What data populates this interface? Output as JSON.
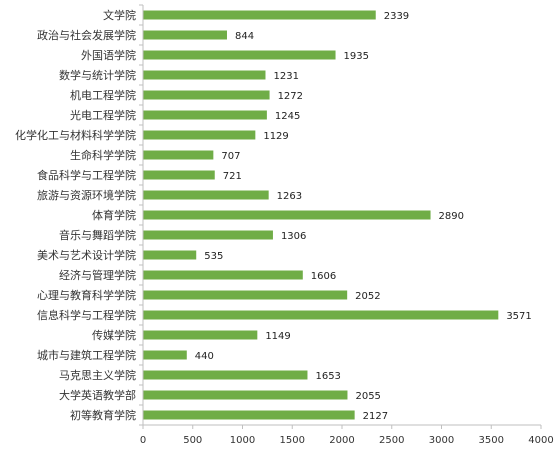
{
  "chart_data": {
    "type": "bar",
    "orientation": "horizontal",
    "categories": [
      "文学院",
      "政治与社会发展学院",
      "外国语学院",
      "数学与统计学院",
      "机电工程学院",
      "光电工程学院",
      "化学化工与材料科学学院",
      "生命科学学院",
      "食品科学与工程学院",
      "旅游与资源环境学院",
      "体育学院",
      "音乐与舞蹈学院",
      "美术与艺术设计学院",
      "经济与管理学院",
      "心理与教育科学学院",
      "信息科学与工程学院",
      "传媒学院",
      "城市与建筑工程学院",
      "马克思主义学院",
      "大学英语教学部",
      "初等教育学院"
    ],
    "values": [
      2339,
      844,
      1935,
      1231,
      1272,
      1245,
      1129,
      707,
      721,
      1263,
      2890,
      1306,
      535,
      1606,
      2052,
      3571,
      1149,
      440,
      1653,
      2055,
      2127
    ],
    "value_labels": [
      "2339",
      "844",
      "1935",
      "1231",
      "1272",
      "1245",
      "1129",
      "707",
      "721",
      "1263",
      "2890",
      "1306",
      "535",
      "1606",
      "2052",
      "3571",
      "1149",
      "440",
      "1653",
      "2055",
      "2127"
    ],
    "xlim": [
      0,
      4000
    ],
    "xticks": [
      0,
      500,
      1000,
      1500,
      2000,
      2500,
      3000,
      3500,
      4000
    ],
    "xtick_labels": [
      "0",
      "500",
      "1000",
      "1500",
      "2000",
      "2500",
      "3000",
      "3500",
      "4000"
    ],
    "grid": false,
    "legend": "none",
    "colors": {
      "bar": "#70AD47",
      "axis": "#bfbfbf"
    }
  }
}
